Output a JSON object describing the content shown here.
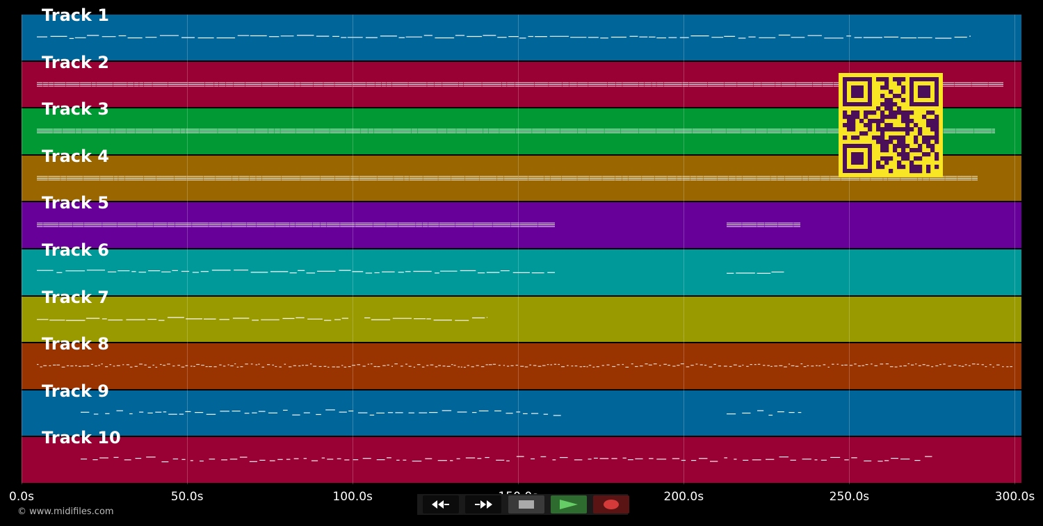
{
  "tracks": [
    {
      "name": "Track 1",
      "color": "#006699"
    },
    {
      "name": "Track 2",
      "color": "#990033"
    },
    {
      "name": "Track 3",
      "color": "#009933"
    },
    {
      "name": "Track 4",
      "color": "#996600"
    },
    {
      "name": "Track 5",
      "color": "#660099"
    },
    {
      "name": "Track 6",
      "color": "#009999"
    },
    {
      "name": "Track 7",
      "color": "#999900"
    },
    {
      "name": "Track 8",
      "color": "#993300"
    },
    {
      "name": "Track 9",
      "color": "#006699"
    },
    {
      "name": "Track 10",
      "color": "#990033"
    }
  ],
  "timeline": {
    "ticks": [
      "0.0s",
      "50.0s",
      "100.0s",
      "150.0s",
      "200.0s",
      "250.0s",
      "300.0s"
    ],
    "duration_seconds": 302
  },
  "transport": {
    "rewind_icon": "rewind-icon",
    "fast_forward_icon": "fast-forward-icon",
    "stop_icon": "stop-icon",
    "play_icon": "play-icon",
    "record_icon": "record-icon"
  },
  "qr_code": {
    "colors": {
      "foreground": "#4b0f5a",
      "background": "#f8e624"
    }
  },
  "copyright": "© www.midifiles.com"
}
